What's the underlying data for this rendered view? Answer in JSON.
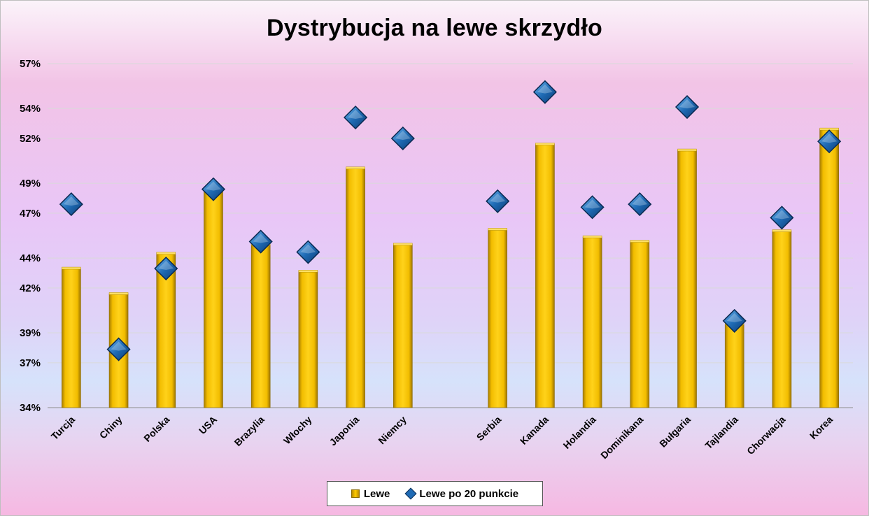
{
  "chart_data": {
    "type": "bar",
    "title": "Dystrybucja na lewe skrzydło",
    "categories": [
      "Turcja",
      "Chiny",
      "Polska",
      "USA",
      "Brazylia",
      "Włochy",
      "Japonia",
      "Niemcy",
      "",
      "Serbia",
      "Kanada",
      "Holandia",
      "Dominikana",
      "Bułgaria",
      "Tajlandia",
      "Chorwacja",
      "Korea"
    ],
    "series": [
      {
        "name": "Lewe",
        "type": "bar",
        "color": "#ffcc00",
        "values": [
          43.3,
          41.6,
          44.3,
          48.6,
          44.9,
          43.1,
          50.0,
          44.9,
          null,
          45.9,
          51.6,
          45.4,
          45.1,
          51.2,
          39.6,
          45.8,
          52.6
        ]
      },
      {
        "name": "Lewe po 20 punkcie",
        "type": "scatter",
        "marker": "diamond",
        "color": "#1f6bb5",
        "values": [
          47.6,
          37.9,
          43.3,
          48.6,
          45.1,
          44.4,
          53.4,
          52.0,
          null,
          47.8,
          55.1,
          47.4,
          47.6,
          54.1,
          39.8,
          46.7,
          51.8
        ]
      }
    ],
    "ylim": [
      34,
      57
    ],
    "yticks": [
      34,
      37,
      39,
      42,
      44,
      47,
      49,
      52,
      54,
      57
    ],
    "ytick_labels": [
      "34%",
      "37%",
      "39%",
      "42%",
      "44%",
      "47%",
      "49%",
      "52%",
      "54%",
      "57%"
    ],
    "grid": true,
    "legend_position": "bottom"
  }
}
